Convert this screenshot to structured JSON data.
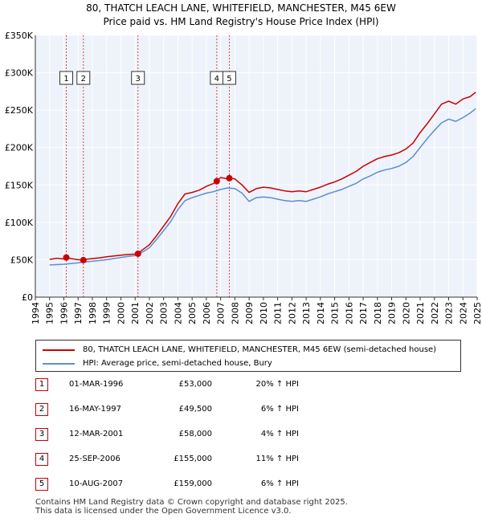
{
  "title": {
    "line1": "80, THATCH LEACH LANE, WHITEFIELD, MANCHESTER, M45 6EW",
    "line2": "Price paid vs. HM Land Registry's House Price Index (HPI)"
  },
  "colors": {
    "property": "#cc0000",
    "hpi": "#5b8fd0",
    "plot_bg": "#eef2fa",
    "grid": "#ffffff",
    "marker_line": "#dd4444"
  },
  "chart_data": {
    "type": "line",
    "title": "80, THATCH LEACH LANE, WHITEFIELD, MANCHESTER, M45 6EW — Price paid vs. HM Land Registry's House Price Index (HPI)",
    "xlabel": "",
    "ylabel": "",
    "xlim": [
      1994,
      2025
    ],
    "ylim": [
      0,
      350000
    ],
    "x_ticks": [
      1994,
      1995,
      1996,
      1997,
      1998,
      1999,
      2000,
      2001,
      2002,
      2003,
      2004,
      2005,
      2006,
      2007,
      2008,
      2009,
      2010,
      2011,
      2012,
      2013,
      2014,
      2015,
      2016,
      2017,
      2018,
      2019,
      2020,
      2021,
      2022,
      2023,
      2024,
      2025
    ],
    "y_ticks": [
      {
        "value": 0,
        "label": "£0"
      },
      {
        "value": 50000,
        "label": "£50K"
      },
      {
        "value": 100000,
        "label": "£100K"
      },
      {
        "value": 150000,
        "label": "£150K"
      },
      {
        "value": 200000,
        "label": "£200K"
      },
      {
        "value": 250000,
        "label": "£250K"
      },
      {
        "value": 300000,
        "label": "£300K"
      },
      {
        "value": 350000,
        "label": "£350K"
      }
    ],
    "series": [
      {
        "name": "80, THATCH LEACH LANE, WHITEFIELD, MANCHESTER, M45 6EW (semi-detached house)",
        "color": "#cc0000",
        "x": [
          1995.0,
          1995.5,
          1996.0,
          1996.17,
          1996.5,
          1997.0,
          1997.37,
          1997.5,
          1998.0,
          1998.5,
          1999.0,
          1999.5,
          2000.0,
          2000.5,
          2001.0,
          2001.2,
          2001.5,
          2002.0,
          2002.5,
          2003.0,
          2003.5,
          2004.0,
          2004.5,
          2005.0,
          2005.5,
          2006.0,
          2006.5,
          2006.73,
          2007.0,
          2007.5,
          2007.61,
          2008.0,
          2008.5,
          2009.0,
          2009.5,
          2010.0,
          2010.5,
          2011.0,
          2011.5,
          2012.0,
          2012.5,
          2013.0,
          2013.5,
          2014.0,
          2014.5,
          2015.0,
          2015.5,
          2016.0,
          2016.5,
          2017.0,
          2017.5,
          2018.0,
          2018.5,
          2019.0,
          2019.5,
          2020.0,
          2020.5,
          2021.0,
          2021.5,
          2022.0,
          2022.5,
          2023.0,
          2023.5,
          2024.0,
          2024.5,
          2024.9
        ],
        "y": [
          50500,
          52000,
          51000,
          53000,
          51500,
          50000,
          49500,
          50500,
          51500,
          52500,
          54000,
          55000,
          56000,
          57000,
          57500,
          58000,
          63000,
          70000,
          82000,
          95000,
          108000,
          125000,
          138000,
          140000,
          143000,
          148000,
          152000,
          155000,
          160000,
          158000,
          159000,
          158000,
          150000,
          140000,
          145000,
          147000,
          146000,
          144000,
          142000,
          141000,
          142000,
          141000,
          144000,
          147000,
          151000,
          154000,
          158000,
          163000,
          168000,
          175000,
          180000,
          185000,
          188000,
          190000,
          193000,
          198000,
          206000,
          220000,
          232000,
          245000,
          258000,
          262000,
          258000,
          265000,
          268000,
          274000
        ]
      },
      {
        "name": "HPI: Average price, semi-detached house, Bury",
        "color": "#5b8fd0",
        "x": [
          1995.0,
          1995.5,
          1996.0,
          1996.5,
          1997.0,
          1997.5,
          1998.0,
          1998.5,
          1999.0,
          1999.5,
          2000.0,
          2000.5,
          2001.0,
          2001.5,
          2002.0,
          2002.5,
          2003.0,
          2003.5,
          2004.0,
          2004.5,
          2005.0,
          2005.5,
          2006.0,
          2006.5,
          2007.0,
          2007.5,
          2008.0,
          2008.5,
          2009.0,
          2009.5,
          2010.0,
          2010.5,
          2011.0,
          2011.5,
          2012.0,
          2012.5,
          2013.0,
          2013.5,
          2014.0,
          2014.5,
          2015.0,
          2015.5,
          2016.0,
          2016.5,
          2017.0,
          2017.5,
          2018.0,
          2018.5,
          2019.0,
          2019.5,
          2020.0,
          2020.5,
          2021.0,
          2021.5,
          2022.0,
          2022.5,
          2023.0,
          2023.5,
          2024.0,
          2024.5,
          2024.9
        ],
        "y": [
          43000,
          43500,
          44000,
          45000,
          46000,
          47000,
          48000,
          49000,
          50000,
          51500,
          53000,
          54500,
          55500,
          60000,
          66000,
          77000,
          89000,
          101000,
          117000,
          129000,
          133000,
          136000,
          139000,
          141000,
          144000,
          146000,
          145000,
          139000,
          128000,
          133000,
          134000,
          133000,
          131000,
          129000,
          128000,
          129000,
          128000,
          131000,
          134000,
          138000,
          141000,
          144000,
          148000,
          152000,
          158000,
          162000,
          167000,
          170000,
          172000,
          175000,
          180000,
          188000,
          200000,
          212000,
          223000,
          233000,
          238000,
          235000,
          240000,
          246000,
          252000
        ]
      }
    ],
    "annotations": [
      {
        "label": "1",
        "x": 1996.17
      },
      {
        "label": "2",
        "x": 1997.37
      },
      {
        "label": "3",
        "x": 2001.2
      },
      {
        "label": "4",
        "x": 2006.73
      },
      {
        "label": "5",
        "x": 2007.61
      }
    ],
    "sale_points": [
      {
        "x": 1996.17,
        "y": 53000
      },
      {
        "x": 1997.37,
        "y": 49500
      },
      {
        "x": 2001.2,
        "y": 58000
      },
      {
        "x": 2006.73,
        "y": 155000
      },
      {
        "x": 2007.61,
        "y": 159000
      }
    ]
  },
  "legend": {
    "property_label": "80, THATCH LEACH LANE, WHITEFIELD, MANCHESTER, M45 6EW (semi-detached house)",
    "hpi_label": "HPI: Average price, semi-detached house, Bury"
  },
  "transactions": [
    {
      "num": "1",
      "date": "01-MAR-1996",
      "price": "£53,000",
      "hpi": "20% ↑ HPI"
    },
    {
      "num": "2",
      "date": "16-MAY-1997",
      "price": "£49,500",
      "hpi": "6% ↑ HPI"
    },
    {
      "num": "3",
      "date": "12-MAR-2001",
      "price": "£58,000",
      "hpi": "4% ↑ HPI"
    },
    {
      "num": "4",
      "date": "25-SEP-2006",
      "price": "£155,000",
      "hpi": "11% ↑ HPI"
    },
    {
      "num": "5",
      "date": "10-AUG-2007",
      "price": "£159,000",
      "hpi": "6% ↑ HPI"
    }
  ],
  "footer": {
    "line1": "Contains HM Land Registry data © Crown copyright and database right 2025.",
    "line2": "This data is licensed under the Open Government Licence v3.0."
  }
}
